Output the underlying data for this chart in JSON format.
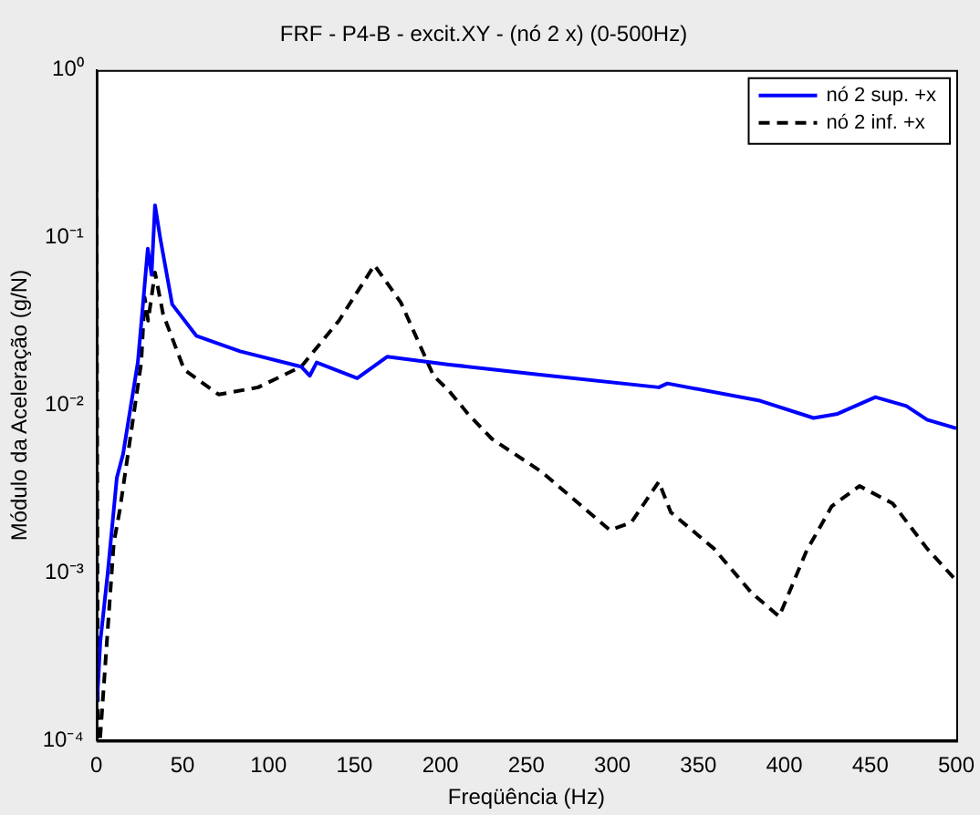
{
  "chart_data": {
    "type": "line",
    "title": "FRF - P4-B - excit.XY - (nó 2 x) (0-500Hz)",
    "xlabel": "Freqüência (Hz)",
    "ylabel": "Módulo da Aceleração (g/N)",
    "log": "y",
    "grid": false,
    "legend": "top right",
    "marker": "none",
    "xlim": [
      0,
      500
    ],
    "xticks": [
      0,
      50,
      100,
      150,
      200,
      250,
      300,
      350,
      400,
      450,
      500
    ],
    "ylim": [
      0.0001,
      1
    ],
    "yticks": [
      {
        "value": 0.0001,
        "label": "10⁻⁴"
      },
      {
        "value": 0.001,
        "label": "10⁻³"
      },
      {
        "value": 0.01,
        "label": "10⁻²"
      },
      {
        "value": 0.1,
        "label": "10⁻¹"
      },
      {
        "value": 1,
        "label": "10⁰"
      }
    ],
    "series": [
      {
        "name": "nó 2 sup. +x",
        "color": "#0000ff",
        "line_style": "solid",
        "x": [
          0.3,
          2.2,
          6.5,
          11.8,
          15.4,
          24,
          27,
          29.8,
          32,
          34,
          37,
          44,
          58,
          83.5,
          119,
          124,
          128,
          151.6,
          169,
          205,
          259,
          327,
          332,
          385,
          417,
          431,
          453,
          471,
          483,
          500
        ],
        "values": [
          0.00017,
          0.00039,
          0.001,
          0.0037,
          0.0051,
          0.018,
          0.04,
          0.086,
          0.06,
          0.156,
          0.1,
          0.04,
          0.026,
          0.021,
          0.017,
          0.015,
          0.018,
          0.0145,
          0.0195,
          0.0175,
          0.0152,
          0.0128,
          0.0135,
          0.0107,
          0.0084,
          0.0089,
          0.0112,
          0.0099,
          0.0082,
          0.0073
        ]
      },
      {
        "name": "nó 2 inf. +x",
        "color": "#000000",
        "line_style": "dashed",
        "x": [
          0,
          0.8,
          2,
          10,
          13.6,
          26,
          28,
          30,
          34,
          38.7,
          51,
          71,
          94,
          119,
          141,
          161.6,
          177,
          196,
          205,
          216,
          230,
          259,
          298.6,
          311,
          327,
          334,
          359,
          381,
          397,
          413,
          427.6,
          443.7,
          463,
          483,
          500
        ],
        "values": [
          0.22,
          0.0001,
          0.0001,
          0.0015,
          0.0024,
          0.018,
          0.044,
          0.032,
          0.062,
          0.035,
          0.0163,
          0.0116,
          0.0128,
          0.017,
          0.032,
          0.0686,
          0.041,
          0.015,
          0.0122,
          0.0089,
          0.0063,
          0.004,
          0.0018,
          0.002,
          0.0035,
          0.0023,
          0.0014,
          0.00076,
          0.00055,
          0.00136,
          0.0025,
          0.0033,
          0.0026,
          0.0014,
          0.0009
        ]
      }
    ]
  }
}
